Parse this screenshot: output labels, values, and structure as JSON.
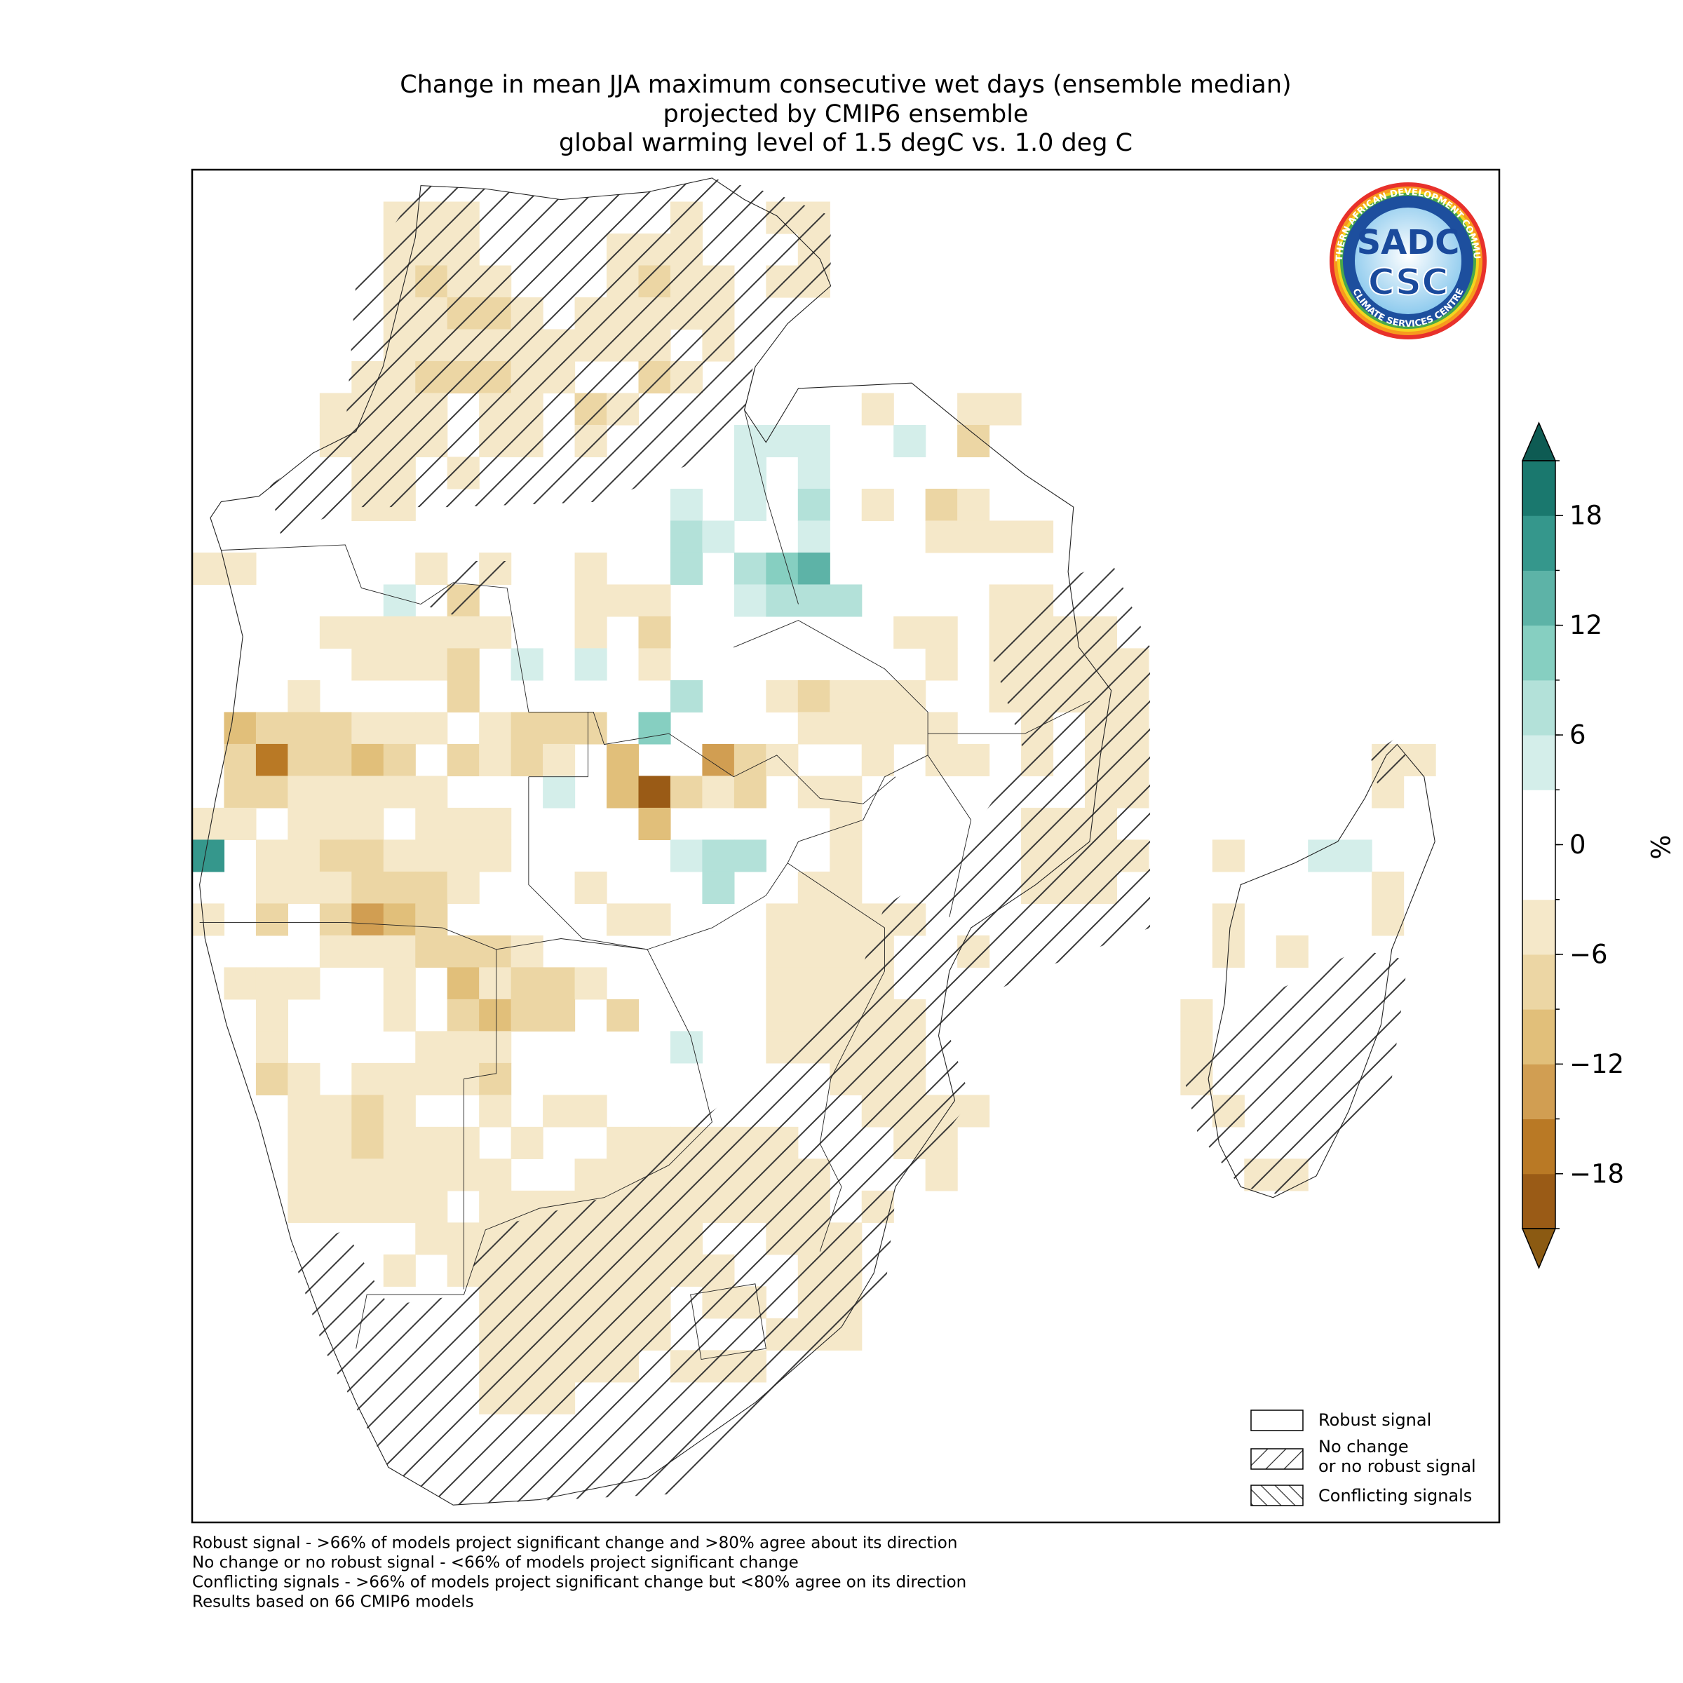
{
  "chart_data": {
    "type": "map",
    "title": [
      "Change in mean JJA maximum consecutive wet days (ensemble median)",
      "projected by CMIP6 ensemble",
      "global warming level of 1.5 degC vs. 1.0 deg C"
    ],
    "xlim": [
      10,
      51
    ],
    "ylim": [
      -36.4,
      6
    ],
    "rows": [
      {
        "lat": 4.5,
        "lon": [
          16.5,
          17.5,
          18.5,
          25.5,
          28.5,
          29.5
        ],
        "values": [
          -4,
          -4,
          -4,
          -4,
          -4,
          -4
        ]
      },
      {
        "lat": 3.5,
        "lon": [
          16.5,
          17.5,
          18.5,
          23.5,
          24.5,
          25.5,
          29.5
        ],
        "values": [
          -4,
          -4,
          -4,
          -4,
          -4,
          -4,
          -4
        ]
      },
      {
        "lat": 2.5,
        "lon": [
          16.5,
          17.5,
          18.5,
          19.5,
          23.5,
          24.5,
          25.5,
          26.5,
          28.5,
          29.5
        ],
        "values": [
          -4,
          -7,
          -4,
          -4,
          -4,
          -7,
          -4,
          -4,
          -4,
          -4
        ]
      },
      {
        "lat": 1.5,
        "lon": [
          16.5,
          17.5,
          18.5,
          19.5,
          20.5,
          22.5,
          23.5,
          24.5,
          25.5,
          26.5
        ],
        "values": [
          -4,
          -4,
          -7,
          -7,
          -4,
          -4,
          -4,
          -4,
          -4,
          -4
        ]
      },
      {
        "lat": 0.5,
        "lon": [
          16.5,
          17.5,
          18.5,
          19.5,
          20.5,
          21.5,
          22.5,
          23.5,
          24.5,
          26.5
        ],
        "values": [
          -4,
          -4,
          -4,
          -4,
          -4,
          -4,
          -4,
          -4,
          -4,
          -4
        ]
      },
      {
        "lat": -0.5,
        "lon": [
          15.5,
          16.5,
          17.5,
          18.5,
          19.5,
          20.5,
          21.5,
          24.5,
          25.5
        ],
        "values": [
          -4,
          -4,
          -7,
          -7,
          -7,
          -4,
          -4,
          -7,
          -4
        ]
      },
      {
        "lat": -1.5,
        "lon": [
          14.5,
          15.5,
          16.5,
          17.5,
          19.5,
          20.5,
          22.5,
          23.5,
          31.5,
          34.5,
          35.5
        ],
        "values": [
          -4,
          -4,
          -4,
          -4,
          -4,
          -4,
          -7,
          -4,
          -4,
          -4,
          -4
        ]
      },
      {
        "lat": -2.5,
        "lon": [
          14.5,
          15.5,
          16.5,
          17.5,
          19.5,
          20.5,
          22.5,
          27.5,
          28.5,
          29.5,
          32.5,
          34.5
        ],
        "values": [
          -4,
          -4,
          -4,
          -4,
          -4,
          -4,
          -4,
          4,
          4,
          4,
          4,
          -7
        ]
      },
      {
        "lat": -3.5,
        "lon": [
          15.5,
          16.5,
          18.5,
          27.5,
          29.5
        ],
        "values": [
          -4,
          -4,
          -4,
          4,
          4
        ]
      },
      {
        "lat": -4.5,
        "lon": [
          15.5,
          16.5,
          25.5,
          27.5,
          29.5,
          31.5,
          33.5,
          34.5
        ],
        "values": [
          -4,
          -4,
          4,
          4,
          7,
          -4,
          -7,
          -4
        ]
      },
      {
        "lat": -5.5,
        "lon": [
          25.5,
          26.5,
          29.5,
          33.5,
          34.5,
          35.5,
          36.5
        ],
        "values": [
          7,
          4,
          4,
          -4,
          -4,
          -4,
          -4
        ]
      },
      {
        "lat": -6.5,
        "lon": [
          10.5,
          11.5,
          17.5,
          19.5,
          22.5,
          25.5,
          27.5,
          28.5,
          29.5
        ],
        "values": [
          -4,
          -4,
          -4,
          -4,
          -4,
          7,
          7,
          10,
          13
        ]
      },
      {
        "lat": -7.5,
        "lon": [
          16.5,
          18.5,
          22.5,
          23.5,
          24.5,
          27.5,
          28.5,
          29.5,
          30.5,
          35.5,
          36.5
        ],
        "values": [
          4,
          -7,
          -4,
          -4,
          -4,
          4,
          7,
          7,
          7,
          -4,
          -4
        ]
      },
      {
        "lat": -8.5,
        "lon": [
          14.5,
          15.5,
          16.5,
          17.5,
          18.5,
          19.5,
          22.5,
          24.5,
          32.5,
          33.5,
          35.5,
          36.5,
          37.5,
          38.5
        ],
        "values": [
          -4,
          -4,
          -4,
          -4,
          -4,
          -4,
          -4,
          -7,
          -4,
          -4,
          -4,
          -4,
          -4,
          -4
        ]
      },
      {
        "lat": -9.5,
        "lon": [
          15.5,
          16.5,
          17.5,
          18.5,
          20.5,
          22.5,
          24.5,
          33.5,
          35.5,
          36.5,
          37.5,
          38.5,
          39.5
        ],
        "values": [
          -4,
          -4,
          -4,
          -7,
          4,
          4,
          -4,
          -4,
          -4,
          -4,
          -4,
          -4,
          -4
        ]
      },
      {
        "lat": -10.5,
        "lon": [
          13.5,
          18.5,
          25.5,
          28.5,
          29.5,
          30.5,
          31.5,
          32.5,
          35.5,
          36.5,
          37.5,
          38.5,
          39.5
        ],
        "values": [
          -4,
          -7,
          7,
          -4,
          -7,
          -4,
          -4,
          -4,
          -4,
          -4,
          -4,
          -4,
          -4
        ]
      },
      {
        "lat": -11.5,
        "lon": [
          11.5,
          12.5,
          13.5,
          14.5,
          15.5,
          16.5,
          17.5,
          19.5,
          20.5,
          21.5,
          22.5,
          24.5,
          29.5,
          30.5,
          31.5,
          32.5,
          33.5,
          36.5,
          38.5,
          39.5
        ],
        "values": [
          -10,
          -7,
          -7,
          -7,
          -4,
          -4,
          -4,
          -4,
          -7,
          -7,
          -7,
          10,
          -4,
          -4,
          -4,
          -4,
          -4,
          -4,
          -4,
          -4
        ]
      },
      {
        "lat": -12.5,
        "lon": [
          11.5,
          12.5,
          13.5,
          14.5,
          15.5,
          16.5,
          18.5,
          19.5,
          20.5,
          21.5,
          23.5,
          26.5,
          27.5,
          28.5,
          31.5,
          33.5,
          34.5,
          36.5,
          38.5,
          39.5,
          47.5,
          48.5
        ],
        "values": [
          -7,
          -16,
          -7,
          -7,
          -10,
          -7,
          -7,
          -4,
          -7,
          -4,
          -10,
          -13,
          -7,
          -4,
          -4,
          -4,
          -4,
          -4,
          -4,
          -4,
          -4,
          -4
        ]
      },
      {
        "lat": -13.5,
        "lon": [
          11.5,
          12.5,
          13.5,
          14.5,
          15.5,
          16.5,
          17.5,
          21.5,
          23.5,
          24.5,
          25.5,
          26.5,
          27.5,
          29.5,
          30.5,
          38.5,
          39.5,
          47.5
        ],
        "values": [
          -7,
          -7,
          -4,
          -4,
          -4,
          -4,
          -4,
          4,
          -10,
          -19,
          -7,
          -4,
          -7,
          -4,
          -4,
          -4,
          -4,
          -4
        ]
      },
      {
        "lat": -14.5,
        "lon": [
          10.5,
          11.5,
          13.5,
          14.5,
          15.5,
          17.5,
          18.5,
          19.5,
          24.5,
          30.5,
          36.5,
          37.5,
          38.5
        ],
        "values": [
          -4,
          -4,
          -4,
          -4,
          -4,
          -4,
          -4,
          -4,
          -10,
          -4,
          -4,
          -4,
          -4
        ]
      },
      {
        "lat": -15.5,
        "lon": [
          10.5,
          12.5,
          13.5,
          14.5,
          15.5,
          16.5,
          17.5,
          18.5,
          19.5,
          25.5,
          26.5,
          27.5,
          30.5,
          36.5,
          37.5,
          38.5,
          39.5,
          42.5,
          45.5,
          46.5
        ],
        "values": [
          16,
          -4,
          -4,
          -7,
          -7,
          -4,
          -4,
          -4,
          -4,
          4,
          7,
          7,
          -4,
          -4,
          -4,
          -4,
          -4,
          -4,
          4,
          4
        ]
      },
      {
        "lat": -16.5,
        "lon": [
          12.5,
          13.5,
          14.5,
          15.5,
          16.5,
          17.5,
          18.5,
          22.5,
          26.5,
          29.5,
          30.5,
          36.5,
          37.5,
          38.5,
          47.5
        ],
        "values": [
          -4,
          -4,
          -4,
          -7,
          -7,
          -7,
          -4,
          -4,
          7,
          -4,
          -4,
          -4,
          -4,
          -4,
          -4
        ]
      },
      {
        "lat": -17.5,
        "lon": [
          10.5,
          12.5,
          14.5,
          15.5,
          16.5,
          17.5,
          23.5,
          24.5,
          28.5,
          29.5,
          30.5,
          31.5,
          32.5,
          42.5,
          47.5
        ],
        "values": [
          -4,
          -7,
          -7,
          -13,
          -10,
          -7,
          -4,
          -4,
          -4,
          -4,
          -4,
          -4,
          -4,
          -4,
          -4
        ]
      },
      {
        "lat": -18.5,
        "lon": [
          14.5,
          15.5,
          16.5,
          17.5,
          18.5,
          19.5,
          20.5,
          28.5,
          29.5,
          30.5,
          31.5,
          34.5,
          42.5,
          44.5
        ],
        "values": [
          -4,
          -4,
          -4,
          -7,
          -7,
          -7,
          -4,
          -4,
          -4,
          -4,
          -4,
          -4,
          -4,
          -4
        ]
      },
      {
        "lat": -19.5,
        "lon": [
          11.5,
          12.5,
          13.5,
          16.5,
          18.5,
          19.5,
          20.5,
          21.5,
          22.5,
          28.5,
          29.5,
          30.5,
          31.5
        ],
        "values": [
          -4,
          -4,
          -4,
          -4,
          -10,
          -4,
          -7,
          -7,
          -4,
          -4,
          -4,
          -4,
          -4
        ]
      },
      {
        "lat": -20.5,
        "lon": [
          12.5,
          16.5,
          18.5,
          19.5,
          20.5,
          21.5,
          23.5,
          28.5,
          29.5,
          30.5,
          31.5,
          32.5,
          41.5
        ],
        "values": [
          -4,
          -4,
          -7,
          -10,
          -7,
          -7,
          -7,
          -4,
          -4,
          -4,
          -4,
          -4,
          -4
        ]
      },
      {
        "lat": -21.5,
        "lon": [
          12.5,
          17.5,
          18.5,
          19.5,
          25.5,
          28.5,
          29.5,
          30.5,
          31.5,
          32.5,
          41.5
        ],
        "values": [
          -4,
          -4,
          -4,
          -4,
          4,
          -4,
          -4,
          -4,
          -4,
          -4,
          -4
        ]
      },
      {
        "lat": -22.5,
        "lon": [
          12.5,
          13.5,
          15.5,
          16.5,
          17.5,
          18.5,
          19.5,
          30.5,
          31.5,
          32.5,
          41.5
        ],
        "values": [
          -7,
          -4,
          -4,
          -4,
          -4,
          -4,
          -7,
          -4,
          -4,
          -4,
          -4
        ]
      },
      {
        "lat": -23.5,
        "lon": [
          13.5,
          14.5,
          15.5,
          16.5,
          19.5,
          21.5,
          22.5,
          31.5,
          32.5,
          33.5,
          34.5,
          42.5
        ],
        "values": [
          -4,
          -4,
          -7,
          -4,
          -4,
          -4,
          -4,
          -4,
          -4,
          -4,
          -4,
          -4
        ]
      },
      {
        "lat": -24.5,
        "lon": [
          13.5,
          14.5,
          15.5,
          16.5,
          17.5,
          18.5,
          20.5,
          23.5,
          24.5,
          25.5,
          26.5,
          27.5,
          28.5,
          32.5,
          33.5
        ],
        "values": [
          -4,
          -4,
          -7,
          -4,
          -4,
          -4,
          -4,
          -4,
          -4,
          -4,
          -4,
          -4,
          -4,
          -4,
          -4
        ]
      },
      {
        "lat": -25.5,
        "lon": [
          13.5,
          14.5,
          15.5,
          16.5,
          17.5,
          18.5,
          19.5,
          22.5,
          23.5,
          24.5,
          25.5,
          26.5,
          27.5,
          28.5,
          29.5,
          33.5,
          43.5,
          44.5
        ],
        "values": [
          -4,
          -4,
          -4,
          -4,
          -4,
          -4,
          -4,
          -4,
          -4,
          -4,
          -4,
          -4,
          -4,
          -4,
          -4,
          -4,
          -4,
          -4
        ]
      },
      {
        "lat": -26.5,
        "lon": [
          13.5,
          14.5,
          15.5,
          16.5,
          17.5,
          19.5,
          20.5,
          21.5,
          22.5,
          23.5,
          24.5,
          25.5,
          26.5,
          27.5,
          28.5,
          29.5,
          31.5
        ],
        "values": [
          -4,
          -4,
          -4,
          -4,
          -4,
          -4,
          -4,
          -4,
          -4,
          -4,
          -4,
          -4,
          -4,
          -4,
          -4,
          -4,
          -4
        ]
      },
      {
        "lat": -27.5,
        "lon": [
          17.5,
          18.5,
          19.5,
          20.5,
          21.5,
          22.5,
          23.5,
          24.5,
          25.5,
          28.5,
          29.5,
          30.5
        ],
        "values": [
          -4,
          -4,
          -4,
          -4,
          -4,
          -4,
          -4,
          -4,
          -4,
          -4,
          -4,
          -4
        ]
      },
      {
        "lat": -28.5,
        "lon": [
          16.5,
          18.5,
          19.5,
          20.5,
          21.5,
          22.5,
          23.5,
          24.5,
          25.5,
          26.5,
          29.5,
          30.5
        ],
        "values": [
          -4,
          -4,
          -4,
          -4,
          -4,
          -4,
          -4,
          -4,
          -4,
          -4,
          -4,
          -4
        ]
      },
      {
        "lat": -29.5,
        "lon": [
          19.5,
          20.5,
          21.5,
          22.5,
          23.5,
          24.5,
          26.5,
          27.5,
          29.5,
          30.5
        ],
        "values": [
          -4,
          -4,
          -4,
          -4,
          -4,
          -4,
          -4,
          -4,
          -4,
          -4
        ]
      },
      {
        "lat": -30.5,
        "lon": [
          19.5,
          20.5,
          21.5,
          22.5,
          23.5,
          24.5,
          28.5,
          29.5,
          30.5
        ],
        "values": [
          -4,
          -4,
          -4,
          -4,
          -4,
          -4,
          -4,
          -4,
          -4
        ]
      },
      {
        "lat": -31.5,
        "lon": [
          19.5,
          20.5,
          21.5,
          22.5,
          23.5,
          25.5,
          26.5,
          27.5
        ],
        "values": [
          -4,
          -4,
          -4,
          -4,
          -4,
          -4,
          -4,
          -4
        ]
      },
      {
        "lat": -32.5,
        "lon": [
          19.5,
          20.5,
          21.5
        ],
        "values": [
          -4,
          -4,
          -4
        ]
      }
    ],
    "colorbar": {
      "bounds": [
        -21,
        -18,
        -15,
        -12,
        -9,
        -6,
        -3,
        0,
        3,
        6,
        9,
        12,
        15,
        18,
        21
      ],
      "colors": [
        "#9a5b16",
        "#b97925",
        "#d19e52",
        "#e1bf7a",
        "#ecd6a4",
        "#f5e8c9",
        "#ffffff",
        "#ffffff",
        "#d4eeea",
        "#b3e1d9",
        "#86cfc1",
        "#5db3a7",
        "#35978c",
        "#1a786e"
      ],
      "under_color": "#8b5a12",
      "over_color": "#0e5b53",
      "ticks": [
        {
          "value": -18,
          "label": "−18"
        },
        {
          "value": -12,
          "label": "−12"
        },
        {
          "value": -6,
          "label": "−6"
        },
        0,
        6,
        12,
        18
      ],
      "label": "%"
    },
    "legend": [
      "Robust signal",
      [
        "No change",
        "or no robust signal"
      ],
      "Conflicting signals"
    ],
    "notes": [
      "Robust signal - >66% of models project significant change and >80% agree about its direction",
      "No change or no robust signal - <66% of models project significant change",
      "Conflicting signals - >66% of models project significant change but <80% agree on its direction",
      "Results based on 66 CMIP6 models"
    ]
  },
  "logo": {
    "main": "SADC",
    "sub": "CSC",
    "ring_top": "SOUTHERN AFRICAN DEVELOPMENT COMMUNITY",
    "ring_bottom": "CLIMATE SERVICES CENTRE"
  }
}
